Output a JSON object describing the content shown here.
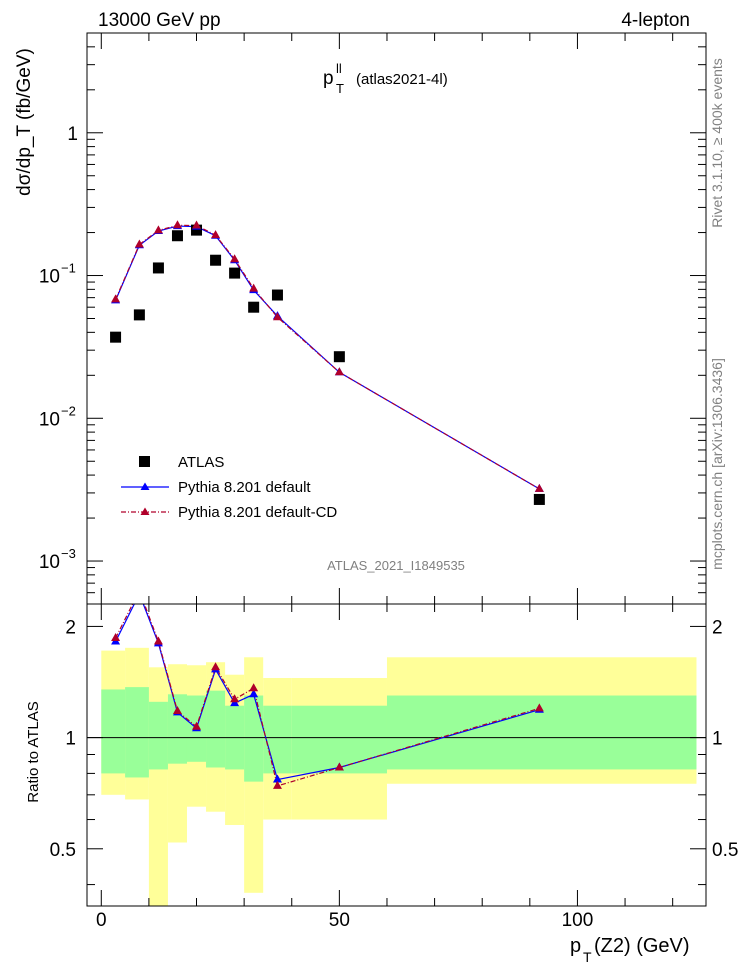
{
  "header": {
    "energy": "13000 GeV pp",
    "process": "4-lepton"
  },
  "side_labels": {
    "rivet": "Rivet 3.1.10, ≥ 400k events",
    "mcplots": "mcplots.cern.ch [arXiv:1306.3436]"
  },
  "chart_data": [
    {
      "type": "scatter",
      "role": "main",
      "title_main": "p",
      "title_sup": "ll",
      "title_sub": "T",
      "title_suffix": "(atlas2021-4l)",
      "watermark": "ATLAS_2021_I1849535",
      "ylabel": "dσ/dp_T (fb/GeV)",
      "yscale": "log",
      "ylim": [
        0.0005,
        5
      ],
      "xlim": [
        -3,
        127
      ],
      "ytick_labels": [
        {
          "value": 1,
          "mantissa": "1",
          "exp": ""
        },
        {
          "value": 0.1,
          "mantissa": "10",
          "exp": "−1"
        },
        {
          "value": 0.01,
          "mantissa": "10",
          "exp": "−2"
        },
        {
          "value": 0.001,
          "mantissa": "10",
          "exp": "−3"
        }
      ],
      "series": [
        {
          "name": "ATLAS",
          "color": "#000000",
          "marker": "square",
          "x": [
            3,
            8,
            12,
            16,
            20,
            24,
            28,
            32,
            37,
            50,
            92
          ],
          "values": [
            0.037,
            0.053,
            0.113,
            0.19,
            0.208,
            0.128,
            0.104,
            0.06,
            0.073,
            0.027,
            0.0027
          ]
        },
        {
          "name": "Pythia 8.201 default",
          "color": "#0000ff",
          "marker": "triangle",
          "line": "solid",
          "x": [
            3,
            8,
            12,
            16,
            20,
            24,
            28,
            32,
            37,
            50,
            92
          ],
          "values": [
            0.067,
            0.163,
            0.205,
            0.222,
            0.22,
            0.19,
            0.128,
            0.079,
            0.052,
            0.021,
            0.0032
          ]
        },
        {
          "name": "Pythia 8.201 default-CD",
          "color": "#b0002a",
          "marker": "triangle",
          "line": "dashdot",
          "x": [
            3,
            8,
            12,
            16,
            20,
            24,
            28,
            32,
            37,
            50,
            92
          ],
          "values": [
            0.068,
            0.165,
            0.207,
            0.225,
            0.224,
            0.192,
            0.13,
            0.081,
            0.051,
            0.021,
            0.0032
          ]
        }
      ]
    },
    {
      "type": "line",
      "role": "ratio",
      "ylabel": "Ratio to ATLAS",
      "xlabel_main": "p",
      "xlabel_sub": "T",
      "xlabel_suffix": "(Z2) (GeV)",
      "ylim": [
        0.35,
        2.3
      ],
      "xlim": [
        -3,
        127
      ],
      "xticks": [
        0,
        50,
        100
      ],
      "ytick_labels": [
        0.5,
        1,
        2
      ],
      "reference": 1,
      "bands": {
        "edges": [
          0,
          5,
          10,
          14,
          18,
          22,
          26,
          30,
          34,
          40,
          60,
          125
        ],
        "yellow_lo": [
          0.7,
          0.68,
          0.35,
          0.52,
          0.65,
          0.63,
          0.58,
          0.38,
          0.6,
          0.6,
          0.75
        ],
        "yellow_hi": [
          1.72,
          1.75,
          1.55,
          1.58,
          1.57,
          1.6,
          1.48,
          1.65,
          1.45,
          1.45,
          1.65
        ],
        "green_lo": [
          0.8,
          0.78,
          0.82,
          0.85,
          0.86,
          0.83,
          0.82,
          0.76,
          0.8,
          0.8,
          0.82
        ],
        "green_hi": [
          1.35,
          1.37,
          1.25,
          1.31,
          1.3,
          1.34,
          1.22,
          1.3,
          1.22,
          1.22,
          1.3
        ],
        "yellow_color": "#ffff99",
        "green_color": "#99ff99"
      },
      "series": [
        {
          "name": "Pythia 8.201 default",
          "color": "#0000ff",
          "x": [
            3,
            8,
            12,
            16,
            20,
            24,
            28,
            32,
            37,
            50,
            92
          ],
          "values": [
            1.82,
            2.45,
            1.8,
            1.17,
            1.06,
            1.53,
            1.24,
            1.31,
            0.77,
            0.83,
            1.19
          ]
        },
        {
          "name": "Pythia 8.201 default-CD",
          "color": "#b0002a",
          "x": [
            3,
            8,
            12,
            16,
            20,
            24,
            28,
            32,
            37,
            50,
            92
          ],
          "values": [
            1.86,
            2.5,
            1.82,
            1.18,
            1.07,
            1.55,
            1.27,
            1.36,
            0.74,
            0.83,
            1.2
          ]
        }
      ]
    }
  ]
}
